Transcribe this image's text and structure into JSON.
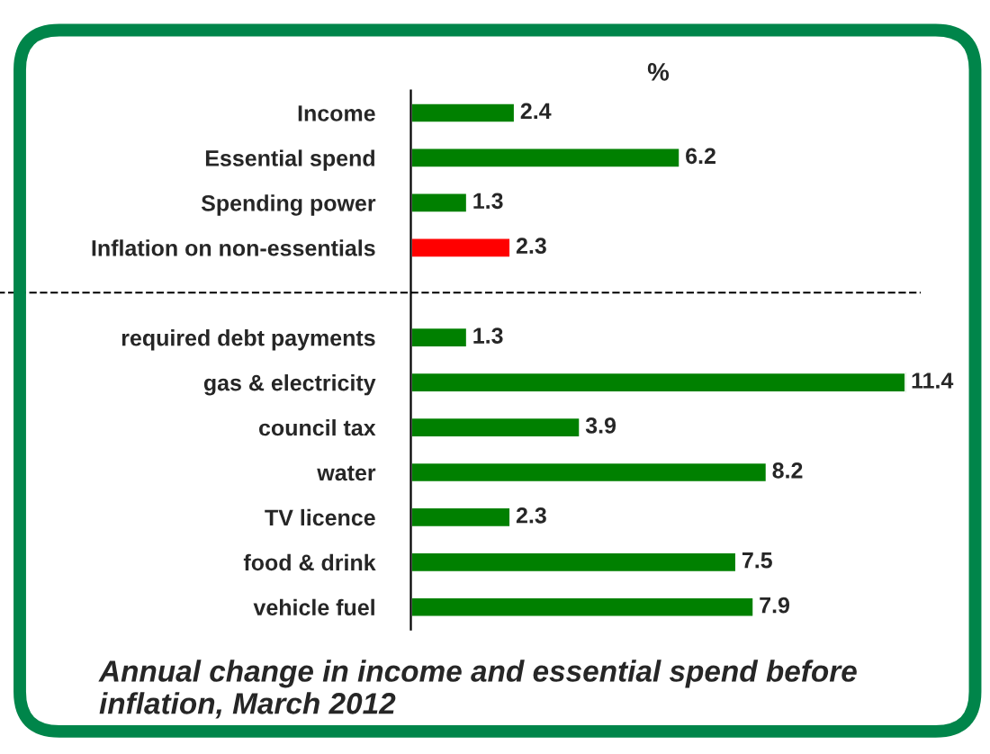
{
  "chart_data": {
    "type": "bar",
    "orientation": "horizontal",
    "title": "Annual change in income and essential spend before inflation, March 2012",
    "xlabel": "%",
    "categories": [
      "Income",
      "Essential spend",
      "Spending power",
      "Inflation on non-essentials",
      null,
      "required debt payments",
      "gas & electricity",
      "council tax",
      "water",
      "TV licence",
      "food & drink",
      "vehicle fuel"
    ],
    "values": [
      2.4,
      6.2,
      1.3,
      2.3,
      null,
      1.3,
      11.4,
      3.9,
      8.2,
      2.3,
      7.5,
      7.9
    ],
    "colors": [
      "#008000",
      "#008000",
      "#008000",
      "#ff0000",
      null,
      "#008000",
      "#008000",
      "#008000",
      "#008000",
      "#008000",
      "#008000",
      "#008000"
    ],
    "data_labels": true,
    "grid": false,
    "legend": false
  }
}
